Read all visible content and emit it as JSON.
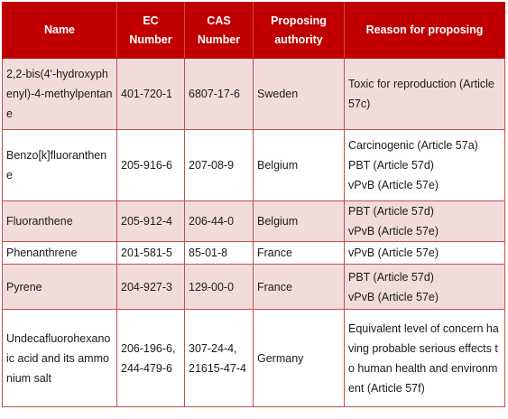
{
  "headers": {
    "name": "Name",
    "ec": "EC Number",
    "cas": "CAS Number",
    "authority": "Proposing authority",
    "reason": "Reason for proposing"
  },
  "rows": [
    {
      "name": "2,2-bis(4'-hydroxyphenyl)-4-methylpentane",
      "ec": [
        "401-720-1"
      ],
      "cas": [
        "6807-17-6"
      ],
      "authority": "Sweden",
      "reasons": [
        "Toxic for reproduction (Article 57c)"
      ]
    },
    {
      "name": "Benzo[k]fluoranthene",
      "ec": [
        "205-916-6"
      ],
      "cas": [
        "207-08-9"
      ],
      "authority": "Belgium",
      "reasons": [
        "Carcinogenic (Article 57a)",
        "PBT (Article 57d)",
        "vPvB (Article 57e)"
      ]
    },
    {
      "name": "Fluoranthene",
      "ec": [
        "205-912-4"
      ],
      "cas": [
        "206-44-0"
      ],
      "authority": "Belgium",
      "reasons": [
        "PBT (Article 57d)",
        "vPvB (Article 57e)"
      ]
    },
    {
      "name": "Phenanthrene",
      "ec": [
        "201-581-5"
      ],
      "cas": [
        "85-01-8"
      ],
      "authority": "France",
      "reasons": [
        "vPvB (Article 57e)"
      ]
    },
    {
      "name": "Pyrene",
      "ec": [
        "204-927-3"
      ],
      "cas": [
        "129-00-0"
      ],
      "authority": "France",
      "reasons": [
        "PBT (Article 57d)",
        "vPvB (Article 57e)"
      ]
    },
    {
      "name": "Undecafluorohexanoic acid and its ammonium salt",
      "ec": [
        "206-196-6,",
        "244-479-6"
      ],
      "cas": [
        "307-24-4,",
        "21615-47-4"
      ],
      "authority": "Germany",
      "reasons": [
        "Equivalent level of concern having probable serious effects to human health and environment (Article 57f)"
      ]
    }
  ]
}
